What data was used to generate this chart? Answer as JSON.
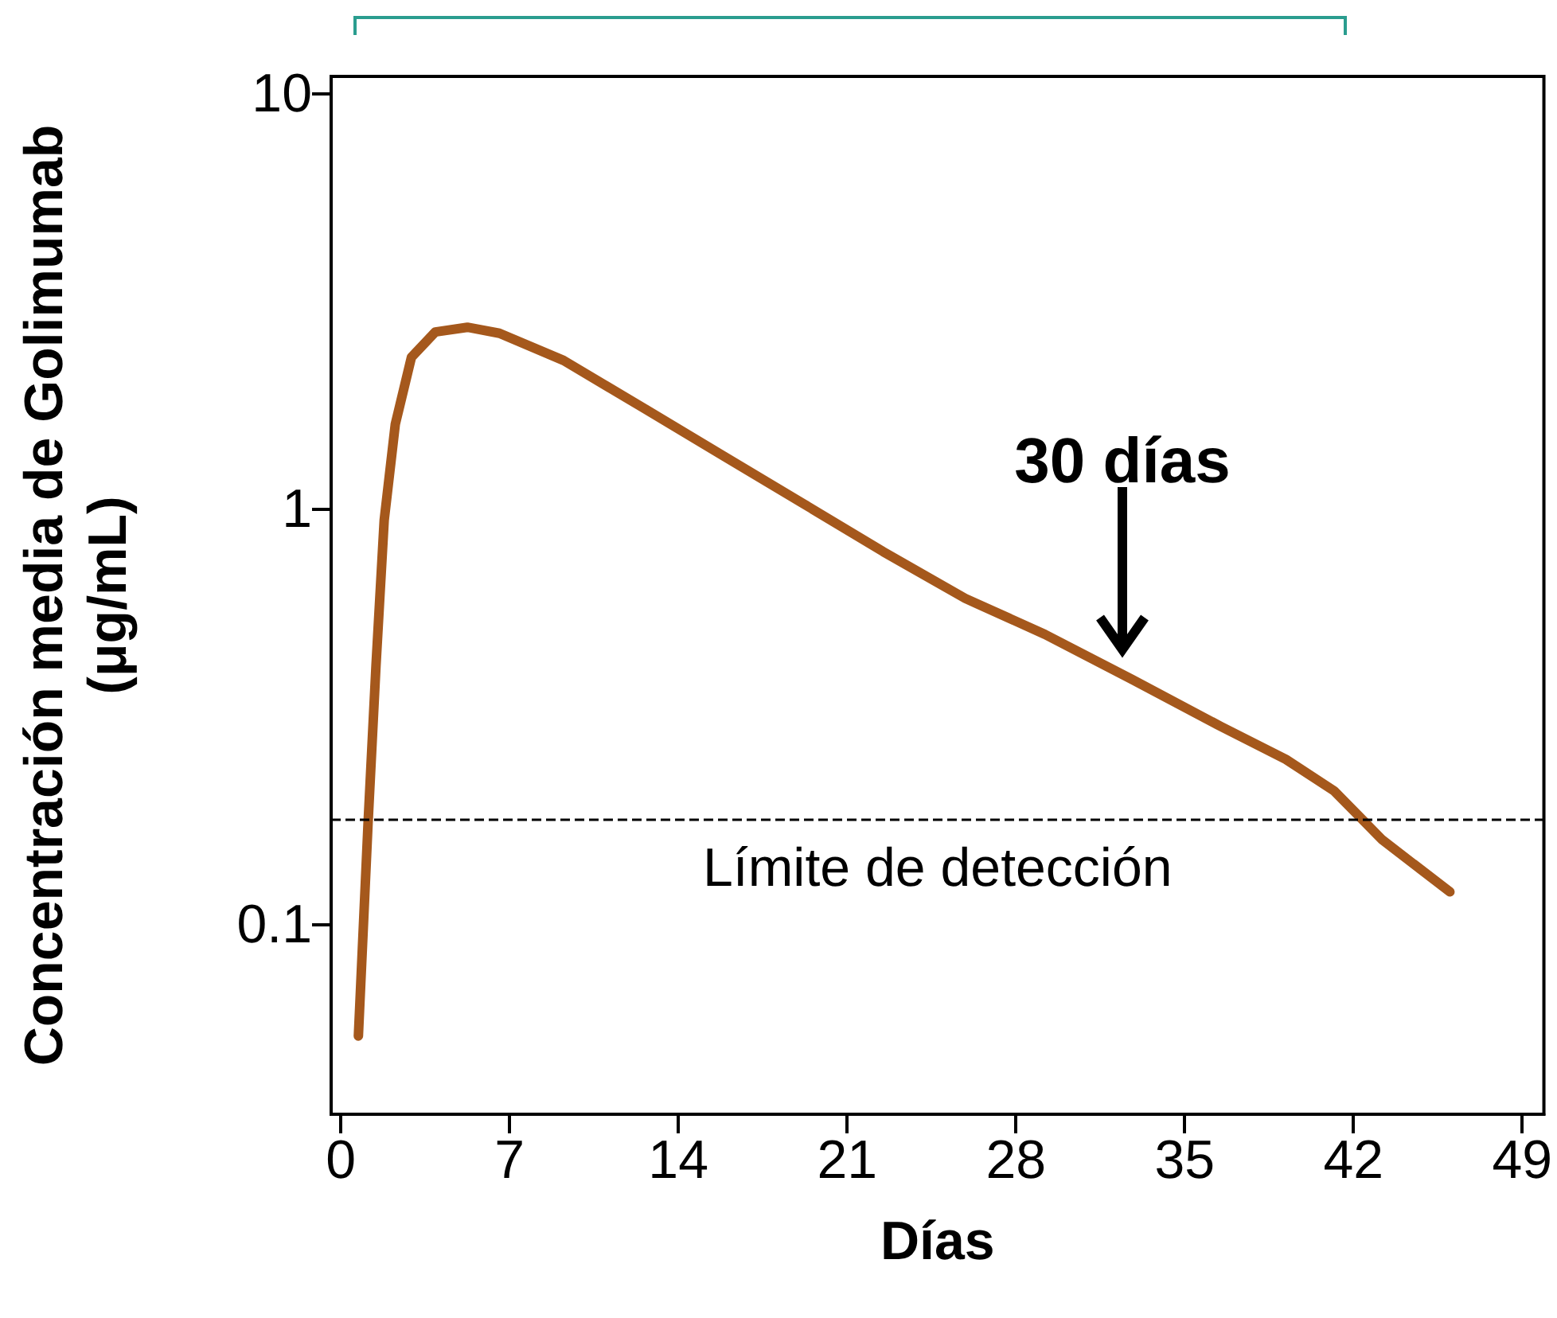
{
  "chart_data": {
    "type": "line",
    "xlabel": "Días",
    "ylabel": "Concentración media de Golimumab\n(μg/mL)",
    "x": [
      0.73,
      1.13,
      1.46,
      1.8,
      2.26,
      2.93,
      3.92,
      5.25,
      6.58,
      9.24,
      12.57,
      15.9,
      19.2,
      22.5,
      25.9,
      29.2,
      32.8,
      36.5,
      39.2,
      41.2,
      43.2,
      46.0
    ],
    "series": [
      {
        "color": "#a5581c",
        "values": [
          0.054,
          0.175,
          0.42,
          0.94,
          1.6,
          2.32,
          2.67,
          2.74,
          2.65,
          2.28,
          1.75,
          1.34,
          1.03,
          0.79,
          0.61,
          0.5,
          0.39,
          0.3,
          0.25,
          0.21,
          0.16,
          0.12
        ]
      }
    ],
    "xlim": [
      -0.4,
      49.9
    ],
    "xticks": [
      0,
      7,
      14,
      21,
      28,
      35,
      42,
      49
    ],
    "ylim": [
      0.035,
      11
    ],
    "yticks": [
      {
        "value": 0.1,
        "label": "0.1"
      },
      1,
      10
    ],
    "log": "y",
    "ref_lines": [
      {
        "axis": "y",
        "value": 0.18,
        "label": "Límite de detección",
        "line_style": "dashed",
        "color": "#000000"
      }
    ],
    "annotations": [
      "30 días"
    ],
    "grid": false,
    "marker": "none",
    "line_style": "solid"
  }
}
